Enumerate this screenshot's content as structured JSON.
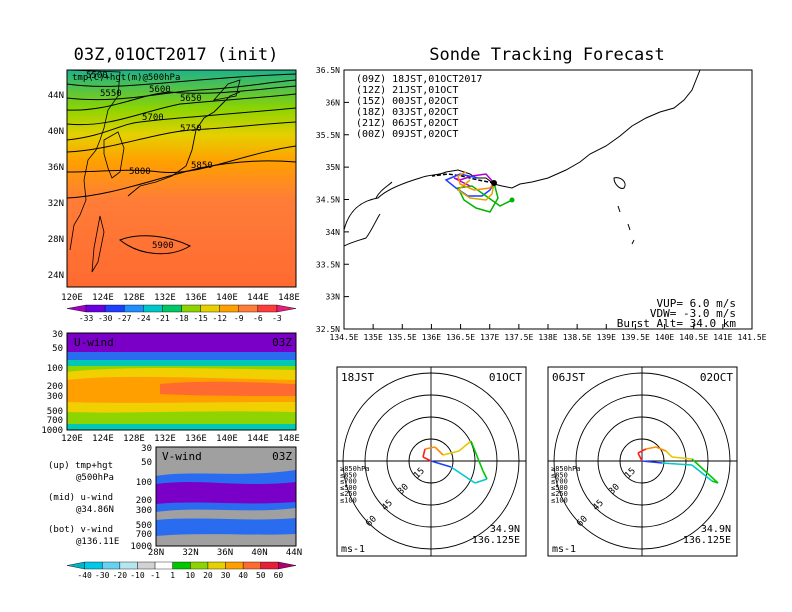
{
  "left_title": "03Z,01OCT2017 (init)",
  "right_title": "Sonde Tracking Forecast",
  "map_top": {
    "variable_label": "tmp(C)+hgt(m)@500hPa",
    "lon_ticks": [
      "120E",
      "124E",
      "128E",
      "132E",
      "136E",
      "140E",
      "144E",
      "148E"
    ],
    "lat_ticks": [
      "24N",
      "28N",
      "32N",
      "36N",
      "40N",
      "44N"
    ],
    "contour_labels": [
      "5500",
      "5550",
      "5600",
      "5650",
      "5700",
      "5750",
      "5800",
      "5850",
      "5900"
    ],
    "colorbar_ticks": [
      "-33",
      "-30",
      "-27",
      "-24",
      "-21",
      "-18",
      "-15",
      "-12",
      "-9",
      "-6",
      "-3"
    ]
  },
  "uwind_panel": {
    "title": "U-wind",
    "time": "03Z",
    "p_ticks": [
      "30",
      "50",
      "100",
      "200",
      "300",
      "500",
      "700",
      "1000"
    ],
    "lon_ticks": [
      "120E",
      "124E",
      "128E",
      "132E",
      "136E",
      "140E",
      "144E",
      "148E"
    ]
  },
  "vwind_panel": {
    "title": "V-wind",
    "time": "03Z",
    "p_ticks": [
      "30",
      "50",
      "100",
      "200",
      "300",
      "500",
      "700",
      "1000"
    ],
    "lat_ticks": [
      "28N",
      "32N",
      "36N",
      "40N",
      "44N"
    ]
  },
  "wind_colorbar_ticks": [
    "-40",
    "-30",
    "-20",
    "-10",
    "-1",
    "1",
    "10",
    "20",
    "30",
    "40",
    "50",
    "60"
  ],
  "descriptions": [
    {
      "a": "(up) tmp+hgt",
      "b": "@500hPa"
    },
    {
      "a": "(mid) u-wind",
      "b": "@34.86N"
    },
    {
      "a": "(bot) v-wind",
      "b": "@136.11E"
    }
  ],
  "track_map": {
    "lat_ticks": [
      "36.5N",
      "36N",
      "35.5N",
      "35N",
      "34.5N",
      "34N",
      "33.5N",
      "33N",
      "32.5N"
    ],
    "lon_ticks": [
      "134.5E",
      "135E",
      "135.5E",
      "136E",
      "136.5E",
      "137E",
      "137.5E",
      "138E",
      "138.5E",
      "139E",
      "139.5E",
      "140E",
      "140.5E",
      "141E",
      "141.5E"
    ],
    "legend": [
      {
        "label": "(09Z)  18JST,01OCT2017",
        "color": "#000000"
      },
      {
        "label": "(12Z)  21JST,01OCT",
        "color": "#b000c8"
      },
      {
        "label": "(15Z)  00JST,02OCT",
        "color": "#1f3fff"
      },
      {
        "label": "(18Z)  03JST,02OCT",
        "color": "#00b400"
      },
      {
        "label": "(21Z)  06JST,02OCT",
        "color": "#d8a800"
      },
      {
        "label": "(00Z)  09JST,02OCT",
        "color": "#ff8c00"
      }
    ],
    "params": [
      "VUP=  6.0 m/s",
      "VDW= -3.0 m/s",
      "Burst Alt= 34.0 km"
    ]
  },
  "polar_left": {
    "time": "18JST",
    "date": "01OCT",
    "lat": "34.9N",
    "lon": "136.125E",
    "unit": "ms-1",
    "ring_labels": [
      "15",
      "30",
      "45",
      "60"
    ]
  },
  "polar_right": {
    "time": "06JST",
    "date": "02OCT",
    "lat": "34.9N",
    "lon": "136.125E",
    "unit": "ms-1",
    "ring_labels": [
      "15",
      "30",
      "45",
      "60"
    ]
  },
  "pressure_legend": [
    {
      "label": "≥850hPa",
      "color": "#ff2020"
    },
    {
      "label": "≤850",
      "color": "#ff8c00"
    },
    {
      "label": "≤700",
      "color": "#e6c800"
    },
    {
      "label": "≤500",
      "color": "#00c800"
    },
    {
      "label": "≤250",
      "color": "#00c8c8"
    },
    {
      "label": "≤100",
      "color": "#1f3fff"
    }
  ],
  "chart_data": {
    "type": "contour-map",
    "title": "Sonde Tracking Forecast",
    "launch_point": {
      "lat": 34.86,
      "lon": 136.11
    },
    "vup_m_s": 6.0,
    "vdw_m_s": -3.0,
    "burst_alt_km": 34.0,
    "track_xlim": [
      134.5,
      141.5
    ],
    "track_ylim": [
      32.5,
      36.5
    ],
    "height_contours_m": [
      5500,
      5550,
      5600,
      5650,
      5700,
      5750,
      5800,
      5850,
      5900
    ],
    "temperature_colorbar_C": [
      -33,
      -30,
      -27,
      -24,
      -21,
      -18,
      -15,
      -12,
      -9,
      -6,
      -3
    ],
    "wind_colorbar_m_s": [
      -40,
      -30,
      -20,
      -10,
      -1,
      1,
      10,
      20,
      30,
      40,
      50,
      60
    ]
  }
}
